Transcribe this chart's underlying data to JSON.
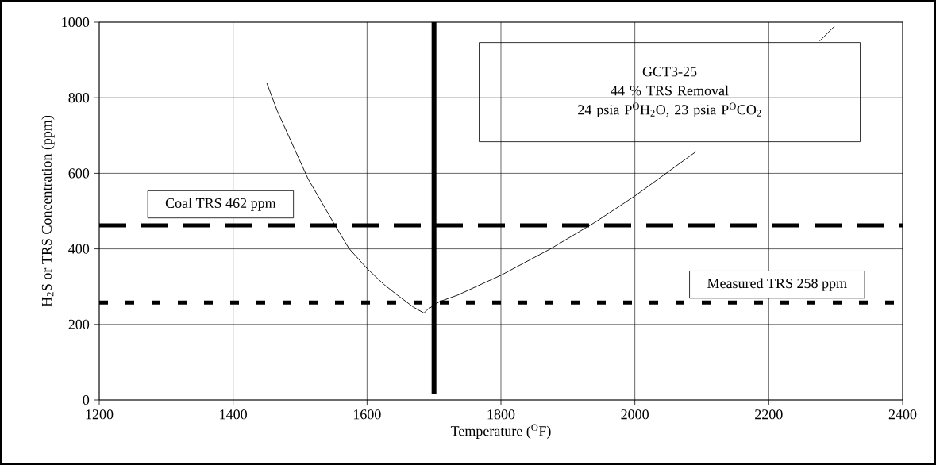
{
  "chart_data": {
    "type": "line",
    "xlabel": "Temperature ($^{O}$F)",
    "ylabel": "H$_{2}$S or TRS Concentration (ppm)",
    "series": [
      {
        "color": "#000000",
        "x": [
          1450,
          1466,
          1512,
          1550,
          1573,
          1600,
          1625,
          1645,
          1669,
          1685,
          1690,
          1708,
          1736,
          1801,
          1875,
          1942,
          2000,
          2091,
          null,
          2276,
          2298
        ],
        "values": [
          840,
          765,
          585,
          469,
          401,
          348,
          306,
          278,
          246,
          230,
          239,
          260,
          278,
          331,
          401,
          472,
          540,
          657,
          null,
          950,
          989
        ]
      }
    ],
    "xlim": [
      1200,
      2400
    ],
    "xticks": [
      1200,
      1400,
      1600,
      1800,
      2000,
      2200,
      2400
    ],
    "ylim": [
      0,
      1000
    ],
    "yticks": [
      0,
      200,
      400,
      600,
      800,
      1000
    ],
    "grid": true,
    "marker": "none",
    "line_style": "solid",
    "ref_lines": [
      {
        "axis": "x",
        "value": 1700,
        "color": "#000000",
        "line_style": "solid"
      },
      {
        "axis": "y",
        "value": 462,
        "label": "Coal TRS 462 ppm",
        "color": "#000000",
        "line_style": "dashed"
      },
      {
        "axis": "y",
        "value": 258,
        "label": "Measured TRS 258 ppm",
        "color": "#000000",
        "line_style": "dotted"
      }
    ],
    "annotations": [
      "GCT3-25",
      "44 % TRS Removal",
      "24 psia P$^{O}$H$_{2}$O, 23 psia P$^{O}$CO$_{2}$"
    ]
  }
}
